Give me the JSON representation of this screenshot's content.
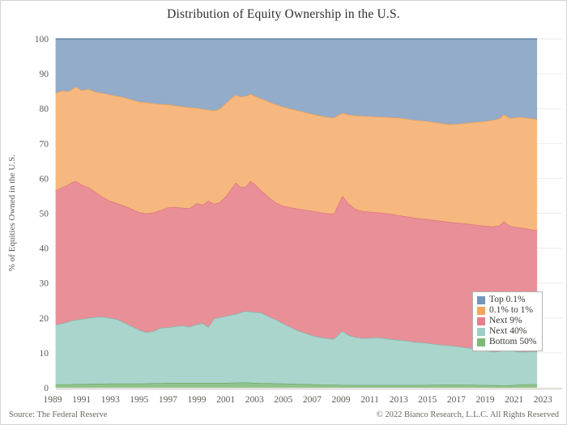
{
  "figure": {
    "title": "Distribution of Equity Ownership in the U.S.",
    "y_axis_label": "% of Equities Owned in the U.S.",
    "source_note": "Source: The Federal Reserve",
    "copyright_note": "© 2022 Bianco Research, L.L.C. All Rights Reserved"
  },
  "chart_data": {
    "type": "area",
    "stacked": true,
    "stack_unit": "percent_of_total_equities",
    "title": "Distribution of Equity Ownership in the U.S.",
    "xlabel": "",
    "ylabel": "% of Equities Owned in the U.S.",
    "ylim": [
      0,
      100
    ],
    "xlim": [
      1989.2,
      2024.3
    ],
    "grid": "horizontal-faint",
    "legend_position": "inside-bottom-right",
    "x_ticks": [
      1989,
      1991,
      1993,
      1995,
      1997,
      1999,
      2001,
      2003,
      2005,
      2007,
      2009,
      2011,
      2013,
      2015,
      2017,
      2019,
      2021,
      2023
    ],
    "y_ticks": [
      0,
      10,
      20,
      30,
      40,
      50,
      60,
      70,
      80,
      90,
      100
    ],
    "values_are": "cum = cumulative stacked top boundary (%) of each band, series listed bottom to top; band share = cum minus previous series cum",
    "x": [
      1989.2,
      1989.7,
      1990.0,
      1990.3,
      1990.6,
      1991.0,
      1991.5,
      1992.0,
      1992.5,
      1993.0,
      1993.5,
      1994.0,
      1994.5,
      1995.0,
      1995.5,
      1996.0,
      1996.5,
      1997.0,
      1997.5,
      1998.0,
      1998.5,
      1999.0,
      1999.4,
      1999.8,
      2000.2,
      2000.6,
      2001.0,
      2001.4,
      2001.7,
      2002.0,
      2002.4,
      2002.7,
      2003.0,
      2003.5,
      2004.0,
      2004.5,
      2005.0,
      2005.5,
      2006.0,
      2006.5,
      2007.0,
      2007.5,
      2008.0,
      2008.5,
      2009.1,
      2009.5,
      2010.0,
      2010.5,
      2011.0,
      2011.5,
      2012.0,
      2012.5,
      2013.0,
      2013.5,
      2014.0,
      2014.5,
      2015.0,
      2015.5,
      2016.0,
      2016.5,
      2017.0,
      2017.5,
      2018.0,
      2018.5,
      2019.0,
      2019.5,
      2020.0,
      2020.3,
      2020.7,
      2021.0,
      2021.4,
      2021.8,
      2022.2,
      2022.6
    ],
    "series": [
      {
        "name": "Bottom 50%",
        "slug": "bottom-50",
        "fill": "#8ec489",
        "edge": "#64a463",
        "swatch": "#7cba77",
        "cum": [
          0.9,
          0.95,
          1.0,
          1.0,
          1.05,
          1.1,
          1.1,
          1.15,
          1.15,
          1.2,
          1.2,
          1.2,
          1.2,
          1.2,
          1.25,
          1.3,
          1.3,
          1.4,
          1.4,
          1.4,
          1.4,
          1.4,
          1.4,
          1.4,
          1.4,
          1.4,
          1.4,
          1.45,
          1.45,
          1.5,
          1.5,
          1.45,
          1.4,
          1.35,
          1.3,
          1.25,
          1.2,
          1.15,
          1.1,
          1.05,
          1.0,
          0.95,
          0.9,
          0.85,
          0.8,
          0.8,
          0.8,
          0.8,
          0.8,
          0.8,
          0.8,
          0.8,
          0.8,
          0.8,
          0.8,
          0.8,
          0.8,
          0.85,
          0.85,
          0.9,
          0.9,
          0.85,
          0.85,
          0.8,
          0.8,
          0.75,
          0.7,
          0.6,
          0.7,
          0.8,
          0.9,
          1.0,
          1.0,
          1.0
        ]
      },
      {
        "name": "Next 40%",
        "slug": "next-40",
        "fill": "#aad5cd",
        "edge": "#79b4a9",
        "swatch": "#9ecfc6",
        "cum": [
          18.1,
          18.5,
          18.8,
          19.2,
          19.5,
          19.7,
          20.0,
          20.3,
          20.3,
          20.0,
          19.6,
          18.6,
          17.6,
          16.6,
          15.9,
          16.2,
          17.2,
          17.3,
          17.6,
          17.8,
          17.5,
          18.2,
          18.5,
          17.4,
          19.8,
          20.2,
          20.5,
          20.9,
          21.1,
          21.5,
          22.0,
          21.8,
          21.7,
          21.5,
          20.4,
          19.5,
          18.4,
          17.4,
          16.4,
          15.7,
          15.0,
          14.5,
          14.2,
          14.0,
          16.3,
          15.1,
          14.5,
          14.2,
          14.3,
          14.4,
          14.2,
          13.9,
          13.7,
          13.5,
          13.2,
          13.0,
          12.8,
          12.5,
          12.3,
          12.1,
          11.9,
          11.6,
          11.4,
          11.1,
          10.7,
          10.3,
          10.4,
          11.4,
          10.7,
          10.5,
          10.3,
          10.3,
          10.4,
          10.3
        ]
      },
      {
        "name": "Next 9%",
        "slug": "next-9",
        "fill": "#e98f98",
        "edge": "#db6a77",
        "swatch": "#e57f8a",
        "cum": [
          56.5,
          57.5,
          58.0,
          58.8,
          59.3,
          58.2,
          57.4,
          56.0,
          54.6,
          53.5,
          52.8,
          52.1,
          51.2,
          50.3,
          49.9,
          50.2,
          50.9,
          51.7,
          51.8,
          51.6,
          51.4,
          52.9,
          52.4,
          53.6,
          52.7,
          53.2,
          54.8,
          57.0,
          58.8,
          57.6,
          57.6,
          59.2,
          58.4,
          56.4,
          54.6,
          53.0,
          52.1,
          51.7,
          51.3,
          51.0,
          50.7,
          50.3,
          50.0,
          49.8,
          55.0,
          52.8,
          51.2,
          50.6,
          50.4,
          50.3,
          50.0,
          49.8,
          49.4,
          49.1,
          48.8,
          48.5,
          48.3,
          48.0,
          47.8,
          47.5,
          47.3,
          47.1,
          46.9,
          46.6,
          46.4,
          46.2,
          46.5,
          47.7,
          46.4,
          46.1,
          45.9,
          45.7,
          45.3,
          45.2
        ]
      },
      {
        "name": "0.1% to 1%",
        "slug": "0-1-to-1",
        "fill": "#f6b87e",
        "edge": "#ec9b4e",
        "swatch": "#f1a75f",
        "cum": [
          84.5,
          85.2,
          84.9,
          85.4,
          86.3,
          85.3,
          85.6,
          84.8,
          84.4,
          84.0,
          83.6,
          83.2,
          82.6,
          82.0,
          81.8,
          81.5,
          81.3,
          81.2,
          80.9,
          80.6,
          80.4,
          80.2,
          79.9,
          79.7,
          79.4,
          80.0,
          81.5,
          83.0,
          84.0,
          83.4,
          83.6,
          84.2,
          83.7,
          82.8,
          82.0,
          81.2,
          80.5,
          80.0,
          79.5,
          79.0,
          78.5,
          78.0,
          77.6,
          77.4,
          78.8,
          78.3,
          78.0,
          77.9,
          77.8,
          77.7,
          77.6,
          77.5,
          77.4,
          77.1,
          76.8,
          76.6,
          76.4,
          76.1,
          75.8,
          75.5,
          75.6,
          75.8,
          76.0,
          76.2,
          76.4,
          76.7,
          77.2,
          78.3,
          77.3,
          77.4,
          77.6,
          77.4,
          77.2,
          77.0
        ]
      },
      {
        "name": "Top 0.1%",
        "slug": "top-0-1",
        "fill": "#92acc9",
        "edge": "#54779e",
        "swatch": "#7396bb",
        "cum": [
          100,
          100,
          100,
          100,
          100,
          100,
          100,
          100,
          100,
          100,
          100,
          100,
          100,
          100,
          100,
          100,
          100,
          100,
          100,
          100,
          100,
          100,
          100,
          100,
          100,
          100,
          100,
          100,
          100,
          100,
          100,
          100,
          100,
          100,
          100,
          100,
          100,
          100,
          100,
          100,
          100,
          100,
          100,
          100,
          100,
          100,
          100,
          100,
          100,
          100,
          100,
          100,
          100,
          100,
          100,
          100,
          100,
          100,
          100,
          100,
          100,
          100,
          100,
          100,
          100,
          100,
          100,
          100,
          100,
          100,
          100,
          100,
          100,
          100
        ]
      }
    ],
    "legend_order_top_to_bottom": [
      "Top 0.1%",
      "0.1% to 1%",
      "Next 9%",
      "Next 40%",
      "Bottom 50%"
    ]
  }
}
